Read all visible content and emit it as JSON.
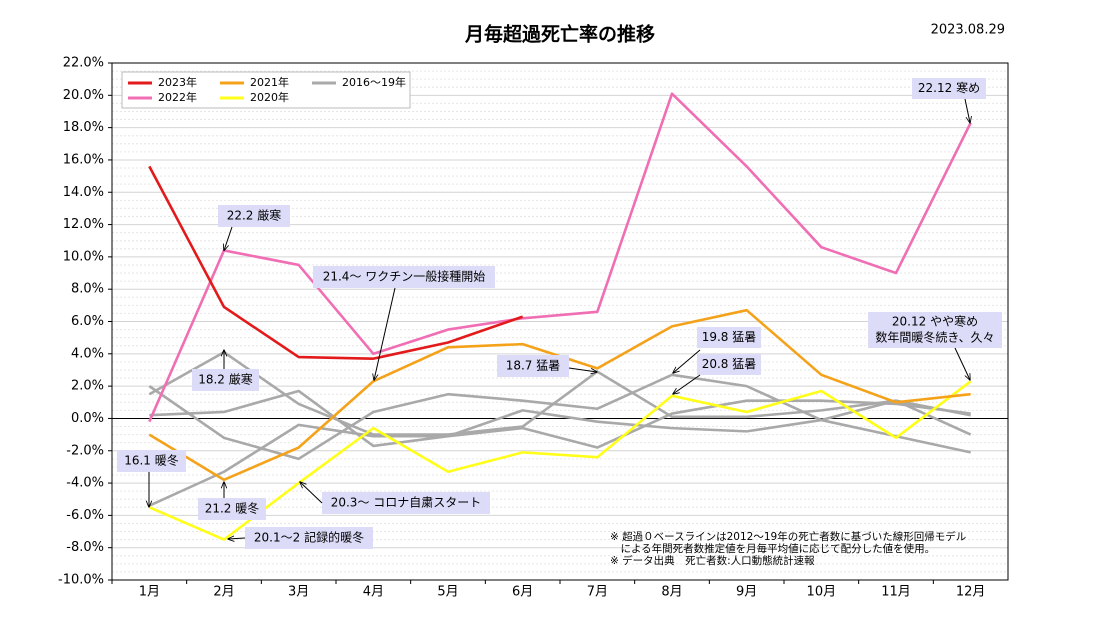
{
  "chart_data": {
    "type": "line",
    "title": "月毎超過死亡率の推移",
    "date": "2023.08.29",
    "categories": [
      "1月",
      "2月",
      "3月",
      "4月",
      "5月",
      "6月",
      "7月",
      "8月",
      "9月",
      "10月",
      "11月",
      "12月"
    ],
    "series": [
      {
        "name": "2023年",
        "color": "#e31a1c",
        "values": [
          15.6,
          6.9,
          3.8,
          3.7,
          4.7,
          6.3,
          null,
          null,
          null,
          null,
          null,
          null
        ]
      },
      {
        "name": "2022年",
        "color": "#f06eb4",
        "values": [
          -0.2,
          10.4,
          9.5,
          4.0,
          5.5,
          6.2,
          6.6,
          20.1,
          15.6,
          10.6,
          9.0,
          18.3
        ]
      },
      {
        "name": "2021年",
        "color": "#f5a21b",
        "values": [
          -1.0,
          -3.8,
          -1.8,
          2.3,
          4.4,
          4.6,
          3.1,
          5.7,
          6.7,
          2.7,
          1.0,
          1.5
        ]
      },
      {
        "name": "2020年",
        "color": "#ffff1a",
        "values": [
          -5.5,
          -7.5,
          -4.0,
          -0.6,
          -3.3,
          -2.1,
          -2.4,
          1.4,
          0.4,
          1.7,
          -1.2,
          2.3
        ]
      },
      {
        "name": "2016～19年",
        "color": "#a9a9a9",
        "values": [
          1.5,
          4.1,
          0.9,
          -1.0,
          -1.0,
          -0.5,
          2.9,
          0.1,
          0.1,
          0.5,
          1.1,
          0.2
        ]
      },
      {
        "name": "2016～19年",
        "color": "#a9a9a9",
        "values": [
          2.0,
          -1.2,
          -2.5,
          0.4,
          1.5,
          1.1,
          0.6,
          2.7,
          2.0,
          -0.1,
          -1.1,
          -2.1
        ]
      },
      {
        "name": "2016～19年",
        "color": "#a9a9a9",
        "values": [
          0.2,
          0.4,
          1.7,
          -1.7,
          -1.1,
          0.5,
          -0.2,
          -0.6,
          -0.8,
          -0.1,
          1.1,
          -1.0
        ]
      },
      {
        "name": "2016～19年",
        "color": "#a9a9a9",
        "values": [
          -5.4,
          -3.3,
          -0.4,
          -1.1,
          -1.1,
          -0.6,
          -1.8,
          0.3,
          1.1,
          1.1,
          0.9,
          0.3
        ]
      }
    ],
    "ylim": [
      -10,
      22
    ],
    "yticks": [
      {
        "value": -10,
        "label": "-10.0%"
      },
      {
        "value": -8,
        "label": "-8.0%"
      },
      {
        "value": -6,
        "label": "-6.0%"
      },
      {
        "value": -4,
        "label": "-4.0%"
      },
      {
        "value": -2,
        "label": "-2.0%"
      },
      {
        "value": 0,
        "label": "0.0%"
      },
      {
        "value": 2,
        "label": "2.0%"
      },
      {
        "value": 4,
        "label": "4.0%"
      },
      {
        "value": 6,
        "label": "6.0%"
      },
      {
        "value": 8,
        "label": "8.0%"
      },
      {
        "value": 10,
        "label": "10.0%"
      },
      {
        "value": 12,
        "label": "12.0%"
      },
      {
        "value": 14,
        "label": "14.0%"
      },
      {
        "value": 16,
        "label": "16.0%"
      },
      {
        "value": 18,
        "label": "18.0%"
      },
      {
        "value": 20,
        "label": "20.0%"
      },
      {
        "value": 22,
        "label": "22.0%"
      }
    ],
    "grid": true,
    "legend": "upper left",
    "annotations": [
      [
        "22.12 寒め"
      ],
      [
        "22.2 厳寒"
      ],
      [
        "21.4～ ワクチン一般接種開始"
      ],
      [
        "20.12 やや寒め",
        "数年間暖冬続き、久々"
      ],
      [
        "19.8 猛暑"
      ],
      [
        "20.8 猛暑"
      ],
      [
        "18.7 猛暑"
      ],
      [
        "18.2 厳寒"
      ],
      [
        "16.1 暖冬"
      ],
      [
        "21.2 暖冬"
      ],
      [
        "20.3～ コロナ自粛スタート"
      ],
      [
        "20.1～2 記録的暖冬"
      ]
    ],
    "notes": [
      "※ 超過０ベースラインは2012～19年の死亡者数に基づいた線形回帰モデル",
      "　による年間死者数推定値を月毎平均値に応じて配分した値を使用。",
      "※ データ出典　死亡者数:人口動態統計速報"
    ]
  }
}
